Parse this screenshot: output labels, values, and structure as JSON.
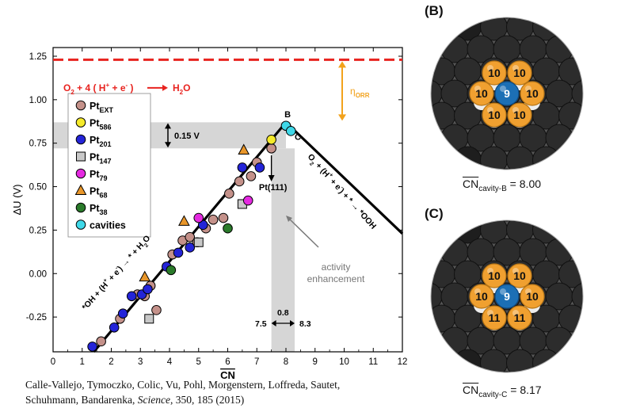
{
  "chart_data": {
    "type": "scatter",
    "xlabel": "CN",
    "ylabel": "ΔU (V)",
    "xlim": [
      0,
      12
    ],
    "ylim": [
      -0.45,
      1.3
    ],
    "xticks": [
      0,
      1,
      2,
      3,
      4,
      5,
      6,
      7,
      8,
      9,
      10,
      11,
      12
    ],
    "yticks": [
      -0.25,
      0.0,
      0.25,
      0.5,
      0.75,
      1.0,
      1.25
    ],
    "ytick_labels": [
      "-0.25",
      "0.00",
      "0.25",
      "0.50",
      "0.75",
      "1.00",
      "1.25"
    ],
    "grid": false,
    "legend_position": "upper-left",
    "reference_line": {
      "y": 1.23,
      "label": "O2 + 4 (H+ + e-) → H2O",
      "color": "#e8231f"
    },
    "volcano": {
      "left": [
        [
          1.4,
          -0.45
        ],
        [
          8.0,
          0.87
        ]
      ],
      "right": [
        [
          8.0,
          0.87
        ],
        [
          12.0,
          0.23
        ]
      ]
    },
    "series": [
      {
        "name": "Pt_EXT",
        "marker": "circle",
        "color": "#c4918a",
        "x": [
          1.65,
          2.3,
          2.9,
          3.15,
          3.35,
          3.55,
          4.1,
          4.45,
          4.7,
          4.95,
          5.25,
          5.5,
          5.85,
          6.05,
          6.4,
          6.8,
          7.0,
          7.5
        ],
        "y": [
          -0.39,
          -0.26,
          -0.12,
          -0.13,
          -0.07,
          -0.21,
          0.11,
          0.19,
          0.21,
          0.18,
          0.26,
          0.31,
          0.32,
          0.46,
          0.53,
          0.56,
          0.64,
          0.72
        ]
      },
      {
        "name": "Pt_586",
        "marker": "circle",
        "color": "#f5ea2a",
        "x": [
          7.5
        ],
        "y": [
          0.77
        ]
      },
      {
        "name": "Pt_201",
        "marker": "circle",
        "color": "#2424d8",
        "x": [
          1.35,
          2.1,
          2.4,
          2.7,
          3.05,
          3.25,
          3.9,
          4.3,
          4.7,
          5.15,
          6.5,
          7.1
        ],
        "y": [
          -0.42,
          -0.31,
          -0.23,
          -0.13,
          -0.12,
          -0.09,
          0.04,
          0.12,
          0.15,
          0.28,
          0.61,
          0.61
        ]
      },
      {
        "name": "Pt_147",
        "marker": "square",
        "color": "#c8c8c8",
        "x": [
          3.3,
          5.0,
          6.5
        ],
        "y": [
          -0.26,
          0.18,
          0.4
        ]
      },
      {
        "name": "Pt_79",
        "marker": "circle",
        "color": "#e42ae0",
        "x": [
          5.0,
          6.7
        ],
        "y": [
          0.32,
          0.42
        ]
      },
      {
        "name": "Pt_68",
        "marker": "triangle",
        "color": "#e8962a",
        "x": [
          3.15,
          4.5,
          6.55
        ],
        "y": [
          -0.02,
          0.3,
          0.71
        ]
      },
      {
        "name": "Pt_38",
        "marker": "circle",
        "color": "#2a7a2a",
        "x": [
          4.05,
          6.0
        ],
        "y": [
          0.02,
          0.26
        ]
      },
      {
        "name": "cavities",
        "marker": "circle",
        "color": "#3fd8e8",
        "x": [
          8.0,
          8.17
        ],
        "y": [
          0.85,
          0.82
        ]
      }
    ],
    "point_labels": [
      {
        "text": "B",
        "x": 7.95,
        "y": 0.9
      },
      {
        "text": "C",
        "x": 8.3,
        "y": 0.77
      }
    ],
    "annotations": {
      "band_label": "0.15 V",
      "pt111": "Pt(111)",
      "activity": [
        "activity",
        "enhancement"
      ],
      "eta": "η",
      "eta_sub": "ORR",
      "cn_low": "7.5",
      "cn_mid": "0.8",
      "cn_high": "8.3",
      "left_reaction": "*OH + (H+ + e-) → * + H2O",
      "right_reaction": "O2 + (H+ + e-) + * → *OOH"
    },
    "colors": {
      "line": "#000000",
      "reference": "#e8231f",
      "eta": "#f2a21c",
      "band": "#d6d6d6",
      "text_red": "#e8231f",
      "arrow_gray": "#7a7a7a"
    }
  },
  "panels": [
    {
      "label": "(B)",
      "cn_text": "8.00",
      "sub": "cavity-B",
      "atoms": [
        {
          "v": "10",
          "kind": "gold"
        },
        {
          "v": "10",
          "kind": "gold"
        },
        {
          "v": "10",
          "kind": "gold"
        },
        {
          "v": "9",
          "kind": "blue"
        },
        {
          "v": "10",
          "kind": "gold"
        },
        {
          "v": "10",
          "kind": "gold"
        },
        {
          "v": "10",
          "kind": "gold"
        }
      ]
    },
    {
      "label": "(C)",
      "cn_text": "8.17",
      "sub": "cavity-C",
      "atoms": [
        {
          "v": "10",
          "kind": "gold"
        },
        {
          "v": "10",
          "kind": "gold"
        },
        {
          "v": "10",
          "kind": "gold"
        },
        {
          "v": "9",
          "kind": "blue"
        },
        {
          "v": "10",
          "kind": "gold"
        },
        {
          "v": "11",
          "kind": "gold"
        },
        {
          "v": "11",
          "kind": "gold"
        }
      ]
    }
  ],
  "cn_symbol": "CN",
  "cn_equals": " = ",
  "caption": {
    "line1": "Calle-Vallejo, Tymoczko, Colic, Vu, Pohl, Morgenstern, Loffreda, Sautet,",
    "line2_pre": "Schuhmann, Bandarenka, ",
    "journal": "Science",
    "line2_post": ", 350, 185 (2015)"
  }
}
